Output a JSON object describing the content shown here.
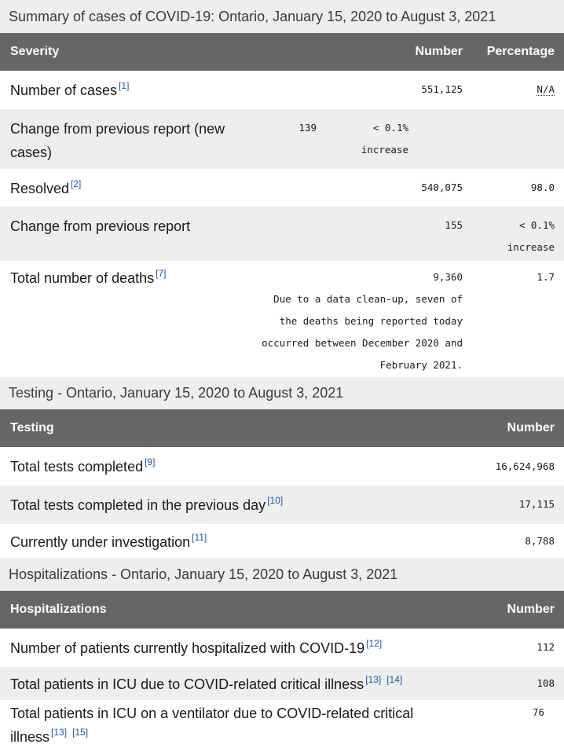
{
  "summary": {
    "caption": "Summary of cases of COVID-19: Ontario, January 15, 2020 to August 3, 2021",
    "headers": [
      "Severity",
      "Number",
      "Percentage"
    ],
    "rows": [
      {
        "label": "Number of cases",
        "refs": [
          "[1]"
        ],
        "number": "551,125",
        "percentage": "N/A"
      },
      {
        "label": "Change from previous report (new cases)",
        "refs": [],
        "number": "139",
        "percentage": "< 0.1%",
        "percentage_note": "increase"
      },
      {
        "label": "Resolved",
        "refs": [
          "[2]"
        ],
        "number": "540,075",
        "percentage": "98.0"
      },
      {
        "label": "Change from previous report",
        "refs": [],
        "number": "155",
        "percentage": "< 0.1%",
        "percentage_note": "increase"
      },
      {
        "label": "Total number of deaths",
        "refs": [
          "[7]"
        ],
        "number": "9,360",
        "percentage": "1.7",
        "note": "Due to a data clean-up, seven of the deaths being reported today occurred between December 2020 and February 2021."
      }
    ]
  },
  "testing": {
    "caption": "Testing - Ontario, January 15, 2020 to August 3, 2021",
    "headers": [
      "Testing",
      "Number"
    ],
    "rows": [
      {
        "label": "Total tests completed",
        "refs": [
          "[9]"
        ],
        "number": "16,624,968"
      },
      {
        "label": "Total tests completed in the previous day",
        "refs": [
          "[10]"
        ],
        "number": "17,115"
      },
      {
        "label": "Currently under investigation",
        "refs": [
          "[11]"
        ],
        "number": "8,788"
      }
    ]
  },
  "hospitalizations": {
    "caption": "Hospitalizations - Ontario, January 15, 2020 to August 3, 2021",
    "headers": [
      "Hospitalizations",
      "Number"
    ],
    "rows": [
      {
        "label": "Number of patients currently hospitalized with COVID-19",
        "refs": [
          "[12]"
        ],
        "number": "112"
      },
      {
        "label": "Total patients in ICU due to COVID-related critical illness",
        "refs": [
          "[13]",
          "[14]"
        ],
        "number": "108"
      },
      {
        "label": "Total patients in ICU on a ventilator due to COVID-related critical illness",
        "refs": [
          "[13]",
          "[15]"
        ],
        "number": "76"
      }
    ]
  }
}
